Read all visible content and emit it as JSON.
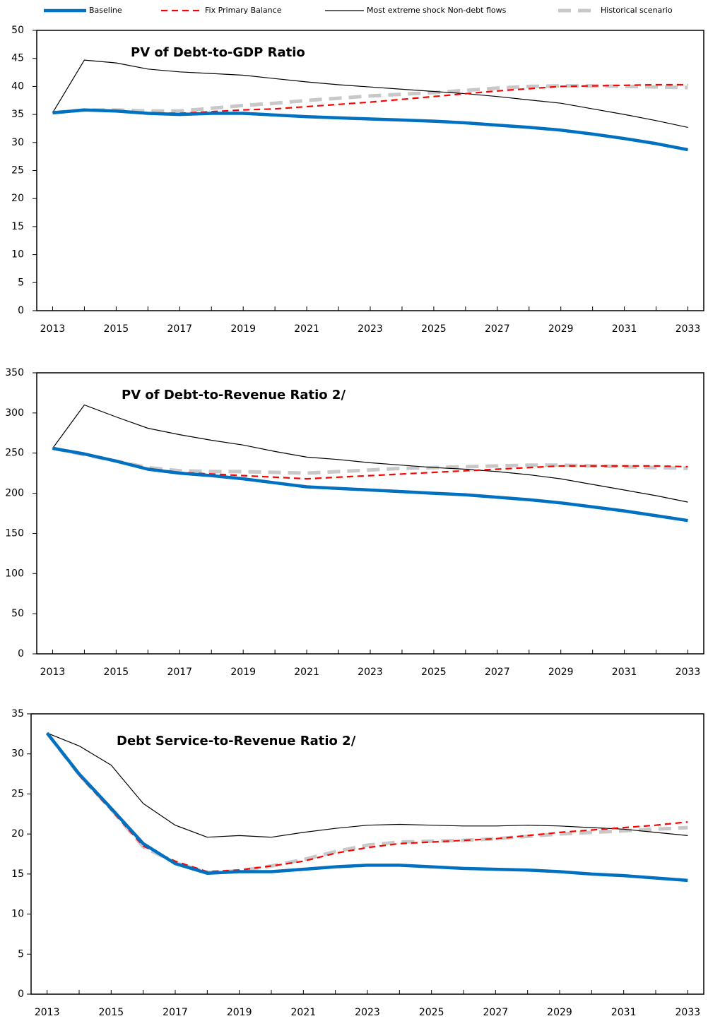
{
  "chart_data": [
    {
      "type": "line",
      "title": "PV of Debt-to-GDP Ratio",
      "x": [
        2013,
        2014,
        2015,
        2016,
        2017,
        2018,
        2019,
        2020,
        2021,
        2022,
        2023,
        2024,
        2025,
        2026,
        2027,
        2028,
        2029,
        2030,
        2031,
        2032,
        2033
      ],
      "xlim": [
        2012.5,
        2033.5
      ],
      "xticks": [
        2013,
        2015,
        2017,
        2019,
        2021,
        2023,
        2025,
        2027,
        2029,
        2031,
        2033
      ],
      "ylim": [
        0,
        50
      ],
      "yticks": [
        0,
        5,
        10,
        15,
        20,
        25,
        30,
        35,
        40,
        45,
        50
      ],
      "series": [
        {
          "name": "Baseline",
          "color": "#0070c0",
          "values": [
            35.3,
            35.8,
            35.6,
            35.2,
            35.0,
            35.2,
            35.2,
            34.9,
            34.6,
            34.4,
            34.2,
            34.0,
            33.8,
            33.5,
            33.1,
            32.7,
            32.2,
            31.5,
            30.7,
            29.8,
            28.7
          ]
        },
        {
          "name": "Fix Primary Balance",
          "color": "#ff0000",
          "values": [
            35.3,
            35.7,
            35.6,
            35.3,
            35.2,
            35.5,
            35.8,
            36.0,
            36.4,
            36.8,
            37.2,
            37.7,
            38.2,
            38.7,
            39.2,
            39.6,
            40.0,
            40.1,
            40.2,
            40.3,
            40.3
          ]
        },
        {
          "name": "Most extreme shock Non-debt flows",
          "color": "#000000",
          "values": [
            35.3,
            44.7,
            44.2,
            43.1,
            42.6,
            42.3,
            42.0,
            41.4,
            40.8,
            40.3,
            39.9,
            39.5,
            39.1,
            38.7,
            38.2,
            37.6,
            37.0,
            36.0,
            35.0,
            33.9,
            32.7
          ]
        },
        {
          "name": "Historical scenario",
          "color": "#c8c8c8",
          "values": [
            35.3,
            35.8,
            35.8,
            35.6,
            35.6,
            36.1,
            36.6,
            37.0,
            37.5,
            37.9,
            38.3,
            38.6,
            38.9,
            39.3,
            39.7,
            40.0,
            40.1,
            40.1,
            40.0,
            39.9,
            39.8
          ]
        }
      ]
    },
    {
      "type": "line",
      "title": "PV of Debt-to-Revenue Ratio 2/",
      "x": [
        2013,
        2014,
        2015,
        2016,
        2017,
        2018,
        2019,
        2020,
        2021,
        2022,
        2023,
        2024,
        2025,
        2026,
        2027,
        2028,
        2029,
        2030,
        2031,
        2032,
        2033
      ],
      "xlim": [
        2012.5,
        2033.5
      ],
      "xticks": [
        2013,
        2015,
        2017,
        2019,
        2021,
        2023,
        2025,
        2027,
        2029,
        2031,
        2033
      ],
      "ylim": [
        0,
        350
      ],
      "yticks": [
        0,
        50,
        100,
        150,
        200,
        250,
        300,
        350
      ],
      "series": [
        {
          "color": "#0070c0",
          "values": [
            256,
            249,
            240,
            230,
            225,
            222,
            218,
            213,
            208,
            206,
            204,
            202,
            200,
            198,
            195,
            192,
            188,
            183,
            178,
            172,
            166
          ]
        },
        {
          "color": "#ff0000",
          "values": [
            256,
            249,
            240,
            231,
            226,
            224,
            222,
            220,
            218,
            220,
            222,
            224,
            226,
            228,
            230,
            232,
            234,
            234,
            234,
            234,
            233
          ]
        },
        {
          "color": "#000000",
          "values": [
            256,
            310,
            295,
            281,
            273,
            266,
            260,
            252,
            245,
            242,
            238,
            235,
            232,
            230,
            227,
            223,
            218,
            211,
            204,
            197,
            189
          ]
        },
        {
          "color": "#c8c8c8",
          "values": [
            256,
            248,
            240,
            232,
            228,
            227,
            227,
            226,
            225,
            227,
            229,
            231,
            232,
            233,
            234,
            235,
            235,
            234,
            233,
            232,
            231
          ]
        }
      ]
    },
    {
      "type": "line",
      "title": "Debt Service-to-Revenue Ratio 2/",
      "x": [
        2013,
        2014,
        2015,
        2016,
        2017,
        2018,
        2019,
        2020,
        2021,
        2022,
        2023,
        2024,
        2025,
        2026,
        2027,
        2028,
        2029,
        2030,
        2031,
        2032,
        2033
      ],
      "xlim": [
        2012.5,
        2033.5
      ],
      "xticks": [
        2013,
        2015,
        2017,
        2019,
        2021,
        2023,
        2025,
        2027,
        2029,
        2031,
        2033
      ],
      "ylim": [
        0,
        35
      ],
      "yticks": [
        0,
        5,
        10,
        15,
        20,
        25,
        30,
        35
      ],
      "series": [
        {
          "color": "#0070c0",
          "values": [
            32.6,
            27.5,
            23.2,
            18.8,
            16.3,
            15.1,
            15.3,
            15.3,
            15.6,
            15.9,
            16.1,
            16.1,
            15.9,
            15.7,
            15.6,
            15.5,
            15.3,
            15.0,
            14.8,
            14.5,
            14.2
          ]
        },
        {
          "color": "#ff0000",
          "values": [
            32.6,
            27.3,
            23.0,
            18.5,
            16.6,
            15.3,
            15.5,
            16.0,
            16.6,
            17.6,
            18.3,
            18.8,
            19.0,
            19.2,
            19.4,
            19.8,
            20.2,
            20.5,
            20.8,
            21.1,
            21.5
          ]
        },
        {
          "color": "#000000",
          "values": [
            32.6,
            31.0,
            28.6,
            23.8,
            21.1,
            19.6,
            19.8,
            19.6,
            20.2,
            20.7,
            21.1,
            21.2,
            21.1,
            21.0,
            21.0,
            21.1,
            21.0,
            20.8,
            20.6,
            20.2,
            19.8
          ]
        },
        {
          "color": "#c8c8c8",
          "values": [
            32.6,
            27.4,
            23.1,
            18.4,
            16.4,
            15.2,
            15.4,
            16.0,
            16.8,
            17.8,
            18.6,
            19.0,
            19.1,
            19.2,
            19.4,
            19.7,
            20.0,
            20.2,
            20.4,
            20.6,
            20.8
          ]
        }
      ]
    }
  ]
}
